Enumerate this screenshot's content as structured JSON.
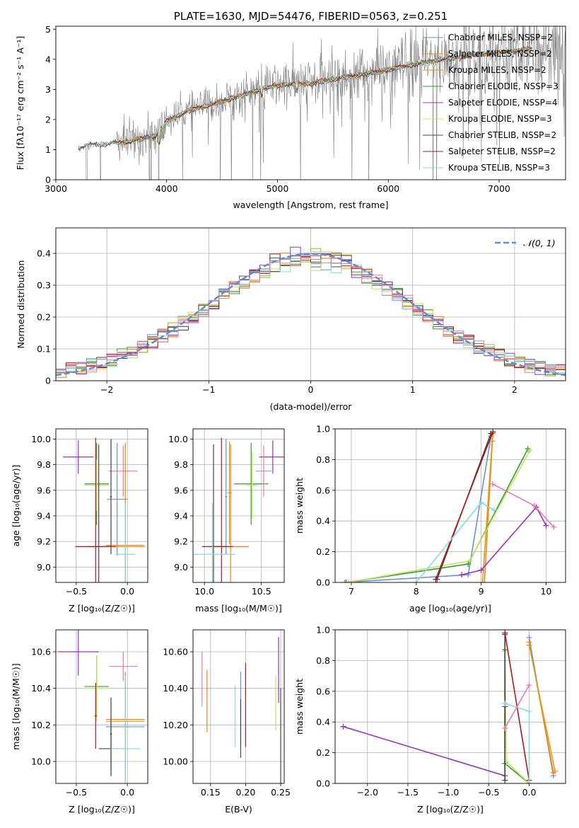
{
  "colors": {
    "chabrier_miles": "#6a8fd8",
    "salpeter_miles": "#ff7f0e",
    "kroupa_miles": "#d4a020",
    "chabrier_elodie": "#2ca02c",
    "salpeter_elodie": "#9b30c0",
    "kroupa_elodie": "#c8e060",
    "chabrier_stelib": "#444444",
    "salpeter_stelib": "#b01818",
    "kroupa_stelib": "#88d8e0",
    "data": "#808080",
    "normal": "#5b8ed8",
    "pink": "#e87ab0"
  },
  "chart_data": [
    {
      "id": "spectrum",
      "type": "line",
      "title": "PLATE=1630, MJD=54476, FIBERID=0563, z=0.251",
      "xlabel": "wavelength [Angstrom, rest frame]",
      "ylabel": "Flux [fλ10⁻¹⁷ erg cm⁻² s⁻¹ A⁻¹]",
      "xlim": [
        3000,
        7600
      ],
      "ylim": [
        0,
        5.1
      ],
      "xticks": [
        3000,
        4000,
        5000,
        6000,
        7000
      ],
      "yticks": [
        0,
        1,
        2,
        3,
        4,
        5
      ],
      "grid": false,
      "legend_position": "top-right",
      "legend": [
        "Chabrier MILES, NSSP=2",
        "Salpeter MILES, NSSP=2",
        "Kroupa MILES, NSSP=2",
        "Chabrier ELODIE, NSSP=3",
        "Salpeter ELODIE, NSSP=4",
        "Kroupa ELODIE, NSSP=3",
        "Chabrier STELIB, NSSP=2",
        "Salpeter STELIB, NSSP=2",
        "Kroupa STELIB, NSSP=3"
      ],
      "continuum_model": {
        "x": [
          3200,
          3300,
          3500,
          3700,
          3900,
          4000,
          4200,
          4500,
          4800,
          5000,
          5300,
          5600,
          6000,
          6400,
          6800,
          7200,
          7300
        ],
        "y": [
          1.05,
          1.15,
          1.2,
          1.3,
          1.45,
          1.95,
          2.3,
          2.6,
          2.95,
          3.15,
          3.2,
          3.4,
          3.65,
          3.95,
          4.15,
          4.3,
          4.35
        ]
      }
    },
    {
      "id": "residuals",
      "type": "histogram",
      "xlabel": "(data-model)/error",
      "ylabel": "Normed distribution",
      "xlim": [
        -2.5,
        2.5
      ],
      "ylim": [
        0,
        0.48
      ],
      "xticks": [
        -2,
        -1,
        0,
        1,
        2
      ],
      "yticks": [
        0.0,
        0.1,
        0.2,
        0.3,
        0.4
      ],
      "grid": true,
      "legend_position": "top-right",
      "legend": [
        "𝒩(0, 1)"
      ],
      "bin_width": 0.1
    },
    {
      "id": "age_vs_Z",
      "type": "errorbar",
      "xlabel": "Z [log₁₀(Z/Z☉)]",
      "ylabel": "age  [log₁₀(age/yr)]",
      "xlim": [
        -0.7,
        0.2
      ],
      "ylim": [
        8.88,
        10.08
      ],
      "xticks": [
        -0.5,
        0.0
      ],
      "yticks": [
        9.0,
        9.2,
        9.4,
        9.6,
        9.8,
        10.0
      ],
      "grid": true,
      "points": [
        {
          "x": -0.48,
          "xerr": 0.15,
          "y": 9.86,
          "yerr": 0.13,
          "color": "salpeter_elodie"
        },
        {
          "x": -0.3,
          "xerr": 0.12,
          "y": 9.65,
          "yerr": 0.32,
          "color": "chabrier_elodie"
        },
        {
          "x": -0.3,
          "xerr": 0.12,
          "y": 9.64,
          "yerr": 0.2,
          "color": "kroupa_elodie"
        },
        {
          "x": -0.04,
          "xerr": 0.14,
          "y": 9.75,
          "yerr": 0.2,
          "color": "pink"
        },
        {
          "x": -0.1,
          "xerr": 0.1,
          "y": 9.53,
          "yerr": 0.44,
          "color": "chabrier_miles"
        },
        {
          "x": -0.02,
          "xerr": 0.19,
          "y": 9.17,
          "yerr": 0.8,
          "color": "salpeter_miles"
        },
        {
          "x": -0.02,
          "xerr": 0.19,
          "y": 9.16,
          "yerr": 0.8,
          "color": "kroupa_miles"
        },
        {
          "x": -0.28,
          "xerr": 0.12,
          "y": 9.16,
          "yerr": 0.8,
          "color": "chabrier_stelib"
        },
        {
          "x": -0.31,
          "xerr": 0.2,
          "y": 9.16,
          "yerr": 0.85,
          "color": "salpeter_stelib"
        },
        {
          "x": -0.02,
          "xerr": 0.1,
          "y": 9.1,
          "yerr": 0.4,
          "color": "kroupa_stelib"
        },
        {
          "x": -0.16,
          "xerr": 0.01,
          "y": 9.55,
          "yerr": 0.45,
          "color": "chabrier_stelib"
        }
      ]
    },
    {
      "id": "age_vs_mass",
      "type": "errorbar",
      "xlabel": "mass [log₁₀(M/M☉)]",
      "ylabel": "",
      "xlim": [
        9.9,
        10.7
      ],
      "ylim": [
        8.88,
        10.08
      ],
      "xticks": [
        10.0,
        10.5
      ],
      "yticks": [
        9.0,
        9.2,
        9.4,
        9.6,
        9.8,
        10.0
      ],
      "grid": true,
      "points": [
        {
          "x": 10.6,
          "xerr": 0.12,
          "y": 9.86,
          "yerr": 0.13,
          "color": "salpeter_elodie"
        },
        {
          "x": 10.41,
          "xerr": 0.15,
          "y": 9.65,
          "yerr": 0.32,
          "color": "chabrier_elodie"
        },
        {
          "x": 10.42,
          "xerr": 0.05,
          "y": 9.64,
          "yerr": 0.26,
          "color": "kroupa_elodie"
        },
        {
          "x": 10.52,
          "xerr": 0.07,
          "y": 9.75,
          "yerr": 0.2,
          "color": "pink"
        },
        {
          "x": 10.19,
          "xerr": 0.01,
          "y": 9.55,
          "yerr": 0.45,
          "color": "chabrier_miles"
        },
        {
          "x": 10.23,
          "xerr": 0.16,
          "y": 9.16,
          "yerr": 0.8,
          "color": "salpeter_miles"
        },
        {
          "x": 10.22,
          "xerr": 0.02,
          "y": 9.58,
          "yerr": 0.4,
          "color": "kroupa_miles"
        },
        {
          "x": 10.08,
          "xerr": 0.1,
          "y": 9.16,
          "yerr": 0.8,
          "color": "chabrier_stelib"
        },
        {
          "x": 10.15,
          "xerr": 0.1,
          "y": 9.16,
          "yerr": 0.85,
          "color": "salpeter_stelib"
        },
        {
          "x": 10.07,
          "xerr": 0.2,
          "y": 9.1,
          "yerr": 0.4,
          "color": "kroupa_stelib"
        }
      ]
    },
    {
      "id": "weight_vs_age",
      "type": "line",
      "xlabel": "age  [log₁₀(age/yr)]",
      "ylabel": "mass weight",
      "xlim": [
        6.75,
        10.3
      ],
      "ylim": [
        0,
        1.0
      ],
      "xticks": [
        7,
        8,
        9,
        10
      ],
      "yticks": [
        0.0,
        0.2,
        0.4,
        0.6,
        0.8,
        1.0
      ],
      "grid": true,
      "series": [
        {
          "color": "chabrier_miles",
          "x": [
            6.9,
            8.8,
            9.15
          ],
          "y": [
            0.0,
            0.05,
            0.95
          ]
        },
        {
          "color": "salpeter_miles",
          "x": [
            9.05,
            9.18
          ],
          "y": [
            0.0,
            0.97
          ]
        },
        {
          "color": "kroupa_miles",
          "x": [
            9.02,
            9.17
          ],
          "y": [
            0.0,
            0.92
          ]
        },
        {
          "color": "chabrier_elodie",
          "x": [
            6.92,
            8.8,
            9.72
          ],
          "y": [
            0.0,
            0.12,
            0.87
          ]
        },
        {
          "color": "kroupa_elodie",
          "x": [
            6.95,
            8.82,
            9.75
          ],
          "y": [
            0.0,
            0.14,
            0.86
          ]
        },
        {
          "color": "salpeter_elodie",
          "x": [
            8.7,
            9.0,
            9.85,
            10.0
          ],
          "y": [
            0.05,
            0.08,
            0.49,
            0.37
          ]
        },
        {
          "color": "chabrier_stelib",
          "x": [
            8.32,
            9.15
          ],
          "y": [
            0.02,
            0.97
          ]
        },
        {
          "color": "salpeter_stelib",
          "x": [
            8.3,
            9.18
          ],
          "y": [
            0.02,
            0.98
          ]
        },
        {
          "color": "kroupa_stelib",
          "x": [
            8.0,
            9.0,
            9.2
          ],
          "y": [
            0.0,
            0.52,
            0.47
          ]
        },
        {
          "color": "pink",
          "x": [
            9.18,
            9.82,
            10.12
          ],
          "y": [
            0.64,
            0.5,
            0.36
          ]
        }
      ]
    },
    {
      "id": "mass_vs_Z",
      "type": "errorbar",
      "xlabel": "Z [log₁₀(Z/Z☉)]",
      "ylabel": "mass [log₁₀(M/M☉)]",
      "xlim": [
        -0.7,
        0.2
      ],
      "ylim": [
        9.88,
        10.72
      ],
      "xticks": [
        -0.5,
        0.0
      ],
      "yticks": [
        10.0,
        10.2,
        10.4,
        10.6
      ],
      "grid": true,
      "points": [
        {
          "x": -0.48,
          "xerr": 0.2,
          "y": 10.6,
          "yerr": 0.13,
          "color": "salpeter_elodie"
        },
        {
          "x": -0.3,
          "xerr": 0.12,
          "y": 10.41,
          "yerr": 0.17,
          "color": "chabrier_elodie"
        },
        {
          "x": -0.3,
          "xerr": 0.12,
          "y": 10.4,
          "yerr": 0.18,
          "color": "kroupa_elodie"
        },
        {
          "x": -0.04,
          "xerr": 0.14,
          "y": 10.52,
          "yerr": 0.08,
          "color": "pink"
        },
        {
          "x": -0.02,
          "xerr": 0.19,
          "y": 10.19,
          "yerr": 0.3,
          "color": "chabrier_miles"
        },
        {
          "x": -0.02,
          "xerr": 0.19,
          "y": 10.23,
          "yerr": 0.25,
          "color": "salpeter_miles"
        },
        {
          "x": -0.02,
          "xerr": 0.19,
          "y": 10.22,
          "yerr": 0.2,
          "color": "kroupa_miles"
        },
        {
          "x": -0.16,
          "xerr": 0.12,
          "y": 10.07,
          "yerr": 0.15,
          "color": "chabrier_stelib"
        },
        {
          "x": -0.31,
          "xerr": 0.01,
          "y": 10.25,
          "yerr": 0.18,
          "color": "salpeter_stelib"
        },
        {
          "x": -0.02,
          "xerr": 0.15,
          "y": 10.07,
          "yerr": 0.4,
          "color": "kroupa_stelib"
        },
        {
          "x": -0.16,
          "xerr": 0.01,
          "y": 10.15,
          "yerr": 0.2,
          "color": "chabrier_stelib"
        }
      ]
    },
    {
      "id": "mass_vs_ebv",
      "type": "errorbar",
      "xlabel": "E(B-V)",
      "ylabel": "",
      "xlim": [
        0.125,
        0.255
      ],
      "ylim": [
        9.88,
        10.72
      ],
      "xticks": [
        0.15,
        0.2,
        0.25
      ],
      "yticks": [
        10.0,
        10.2,
        10.4,
        10.6
      ],
      "grid": true,
      "points": [
        {
          "x": 0.138,
          "xerr": 0.0,
          "y": 10.45,
          "yerr": 0.15,
          "color": "pink"
        },
        {
          "x": 0.145,
          "xerr": 0.0,
          "y": 10.33,
          "yerr": 0.17,
          "color": "salpeter_miles"
        },
        {
          "x": 0.185,
          "xerr": 0.0,
          "y": 10.25,
          "yerr": 0.17,
          "color": "kroupa_stelib"
        },
        {
          "x": 0.193,
          "xerr": 0.0,
          "y": 10.29,
          "yerr": 0.2,
          "color": "chabrier_miles"
        },
        {
          "x": 0.193,
          "xerr": 0.0,
          "y": 10.18,
          "yerr": 0.16,
          "color": "chabrier_stelib"
        },
        {
          "x": 0.2,
          "xerr": 0.0,
          "y": 10.31,
          "yerr": 0.23,
          "color": "salpeter_stelib"
        },
        {
          "x": 0.243,
          "xerr": 0.0,
          "y": 10.32,
          "yerr": 0.15,
          "color": "kroupa_elodie"
        },
        {
          "x": 0.247,
          "xerr": 0.0,
          "y": 10.5,
          "yerr": 0.18,
          "color": "salpeter_elodie"
        },
        {
          "x": 0.25,
          "xerr": 0.0,
          "y": 10.1,
          "yerr": 0.3,
          "color": "chabrier_stelib"
        }
      ]
    },
    {
      "id": "weight_vs_Z",
      "type": "line",
      "xlabel": "Z [log₁₀(Z/Z☉)]",
      "ylabel": "mass weight",
      "xlim": [
        -2.4,
        0.45
      ],
      "ylim": [
        0,
        1.0
      ],
      "xticks": [
        -2.0,
        -1.5,
        -1.0,
        -0.5,
        0.0
      ],
      "yticks": [
        0.0,
        0.2,
        0.4,
        0.6,
        0.8,
        1.0
      ],
      "grid": true,
      "series": [
        {
          "color": "chabrier_miles",
          "x": [
            0.0,
            0.3
          ],
          "y": [
            0.95,
            0.05
          ]
        },
        {
          "color": "salpeter_miles",
          "x": [
            0.0,
            0.3
          ],
          "y": [
            0.92,
            0.07
          ]
        },
        {
          "color": "kroupa_miles",
          "x": [
            0.0,
            0.32
          ],
          "y": [
            0.9,
            0.08
          ]
        },
        {
          "color": "chabrier_elodie",
          "x": [
            -0.3,
            -0.3,
            0.0
          ],
          "y": [
            0.87,
            0.13,
            0.0
          ]
        },
        {
          "color": "kroupa_elodie",
          "x": [
            -0.3,
            -0.28,
            0.0
          ],
          "y": [
            0.86,
            0.14,
            0.0
          ]
        },
        {
          "color": "salpeter_elodie",
          "x": [
            -2.3,
            -0.3,
            -0.3
          ],
          "y": [
            0.37,
            0.05,
            0.5
          ]
        },
        {
          "color": "chabrier_stelib",
          "x": [
            -0.3,
            -0.3
          ],
          "y": [
            0.97,
            0.02
          ]
        },
        {
          "color": "salpeter_stelib",
          "x": [
            -0.3,
            0.0
          ],
          "y": [
            0.98,
            0.02
          ]
        },
        {
          "color": "kroupa_stelib",
          "x": [
            -0.3,
            0.0,
            0.0
          ],
          "y": [
            0.52,
            0.47,
            0.0
          ]
        },
        {
          "color": "pink",
          "x": [
            -0.3,
            0.0
          ],
          "y": [
            0.36,
            0.64
          ]
        }
      ]
    }
  ]
}
